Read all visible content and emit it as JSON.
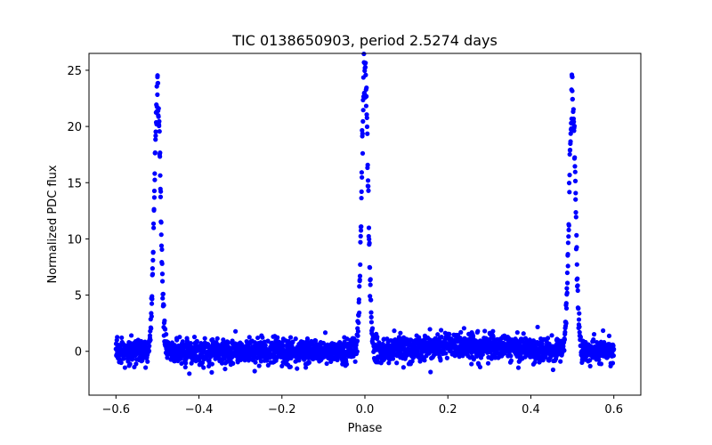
{
  "chart_data": {
    "type": "scatter",
    "title": "TIC 0138650903, period 2.5274 days",
    "xlabel": "Phase",
    "ylabel": "Normalized PDC flux",
    "xlim": [
      -0.665,
      0.665
    ],
    "ylim": [
      -3.9,
      26.5
    ],
    "xticks": [
      -0.6,
      -0.4,
      -0.2,
      0.0,
      0.2,
      0.4,
      0.6
    ],
    "xtick_labels": [
      "−0.6",
      "−0.4",
      "−0.2",
      "0.0",
      "0.2",
      "0.4",
      "0.6"
    ],
    "yticks": [
      0,
      5,
      10,
      15,
      20,
      25
    ],
    "ytick_labels": [
      "0",
      "5",
      "10",
      "15",
      "20",
      "25"
    ],
    "grid": false,
    "series": [
      {
        "color": "#0000ff",
        "phase_range": [
          -0.6,
          0.6
        ],
        "baseline": 0,
        "noise_sigma": 0.55,
        "peaks": [
          {
            "phase": -0.5,
            "height": 23.0,
            "max_point": 24.4
          },
          {
            "phase": 0.0,
            "height": 25.2,
            "max_point": 25.2
          },
          {
            "phase": 0.5,
            "height": 23.0,
            "max_point": 24.4
          }
        ],
        "peak_width": 0.0075
      }
    ]
  }
}
